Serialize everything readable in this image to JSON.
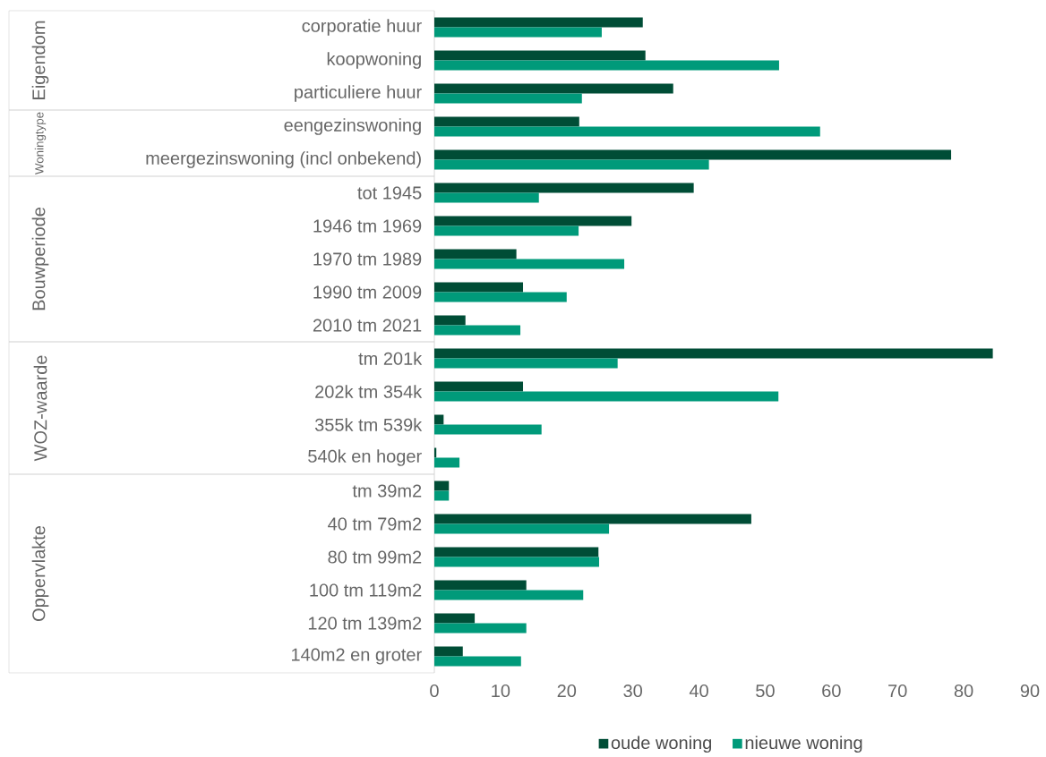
{
  "chart_data": {
    "type": "bar",
    "orientation": "horizontal",
    "categories": [
      "corporatie huur",
      "koopwoning",
      "particuliere huur",
      "eengezinswoning",
      "meergezinswoning (incl onbekend)",
      "tot 1945",
      "1946 tm 1969",
      "1970 tm 1989",
      "1990 tm 2009",
      "2010 tm 2021",
      "tm 201k",
      "202k tm 354k",
      "355k tm 539k",
      "540k en hoger",
      "tm 39m2",
      "40 tm 79m2",
      "80 tm 99m2",
      "100 tm 119m2",
      "120 tm 139m2",
      "140m2 en groter"
    ],
    "series": [
      {
        "name": "oude woning",
        "color": "#004d36",
        "values": [
          31.5,
          31.9,
          36.1,
          21.9,
          78.1,
          39.2,
          29.8,
          12.4,
          13.4,
          4.7,
          84.4,
          13.4,
          1.4,
          0.3,
          2.2,
          47.9,
          24.8,
          13.9,
          6.1,
          4.3
        ]
      },
      {
        "name": "nieuwe woning",
        "color": "#009a7a",
        "values": [
          25.3,
          52.1,
          22.3,
          58.3,
          41.5,
          15.8,
          21.8,
          28.7,
          20.0,
          13.0,
          27.7,
          52.0,
          16.2,
          3.8,
          2.2,
          26.4,
          24.9,
          22.5,
          13.9,
          13.1
        ]
      }
    ],
    "xlim": [
      0,
      90
    ],
    "xticks": [
      0,
      10,
      20,
      30,
      40,
      50,
      60,
      70,
      80,
      90
    ],
    "legend": "bottom",
    "annotations": [
      "Eigendom",
      "Woningtype",
      "Bouwperiode",
      "WOZ-waarde",
      "Oppervlakte"
    ]
  }
}
